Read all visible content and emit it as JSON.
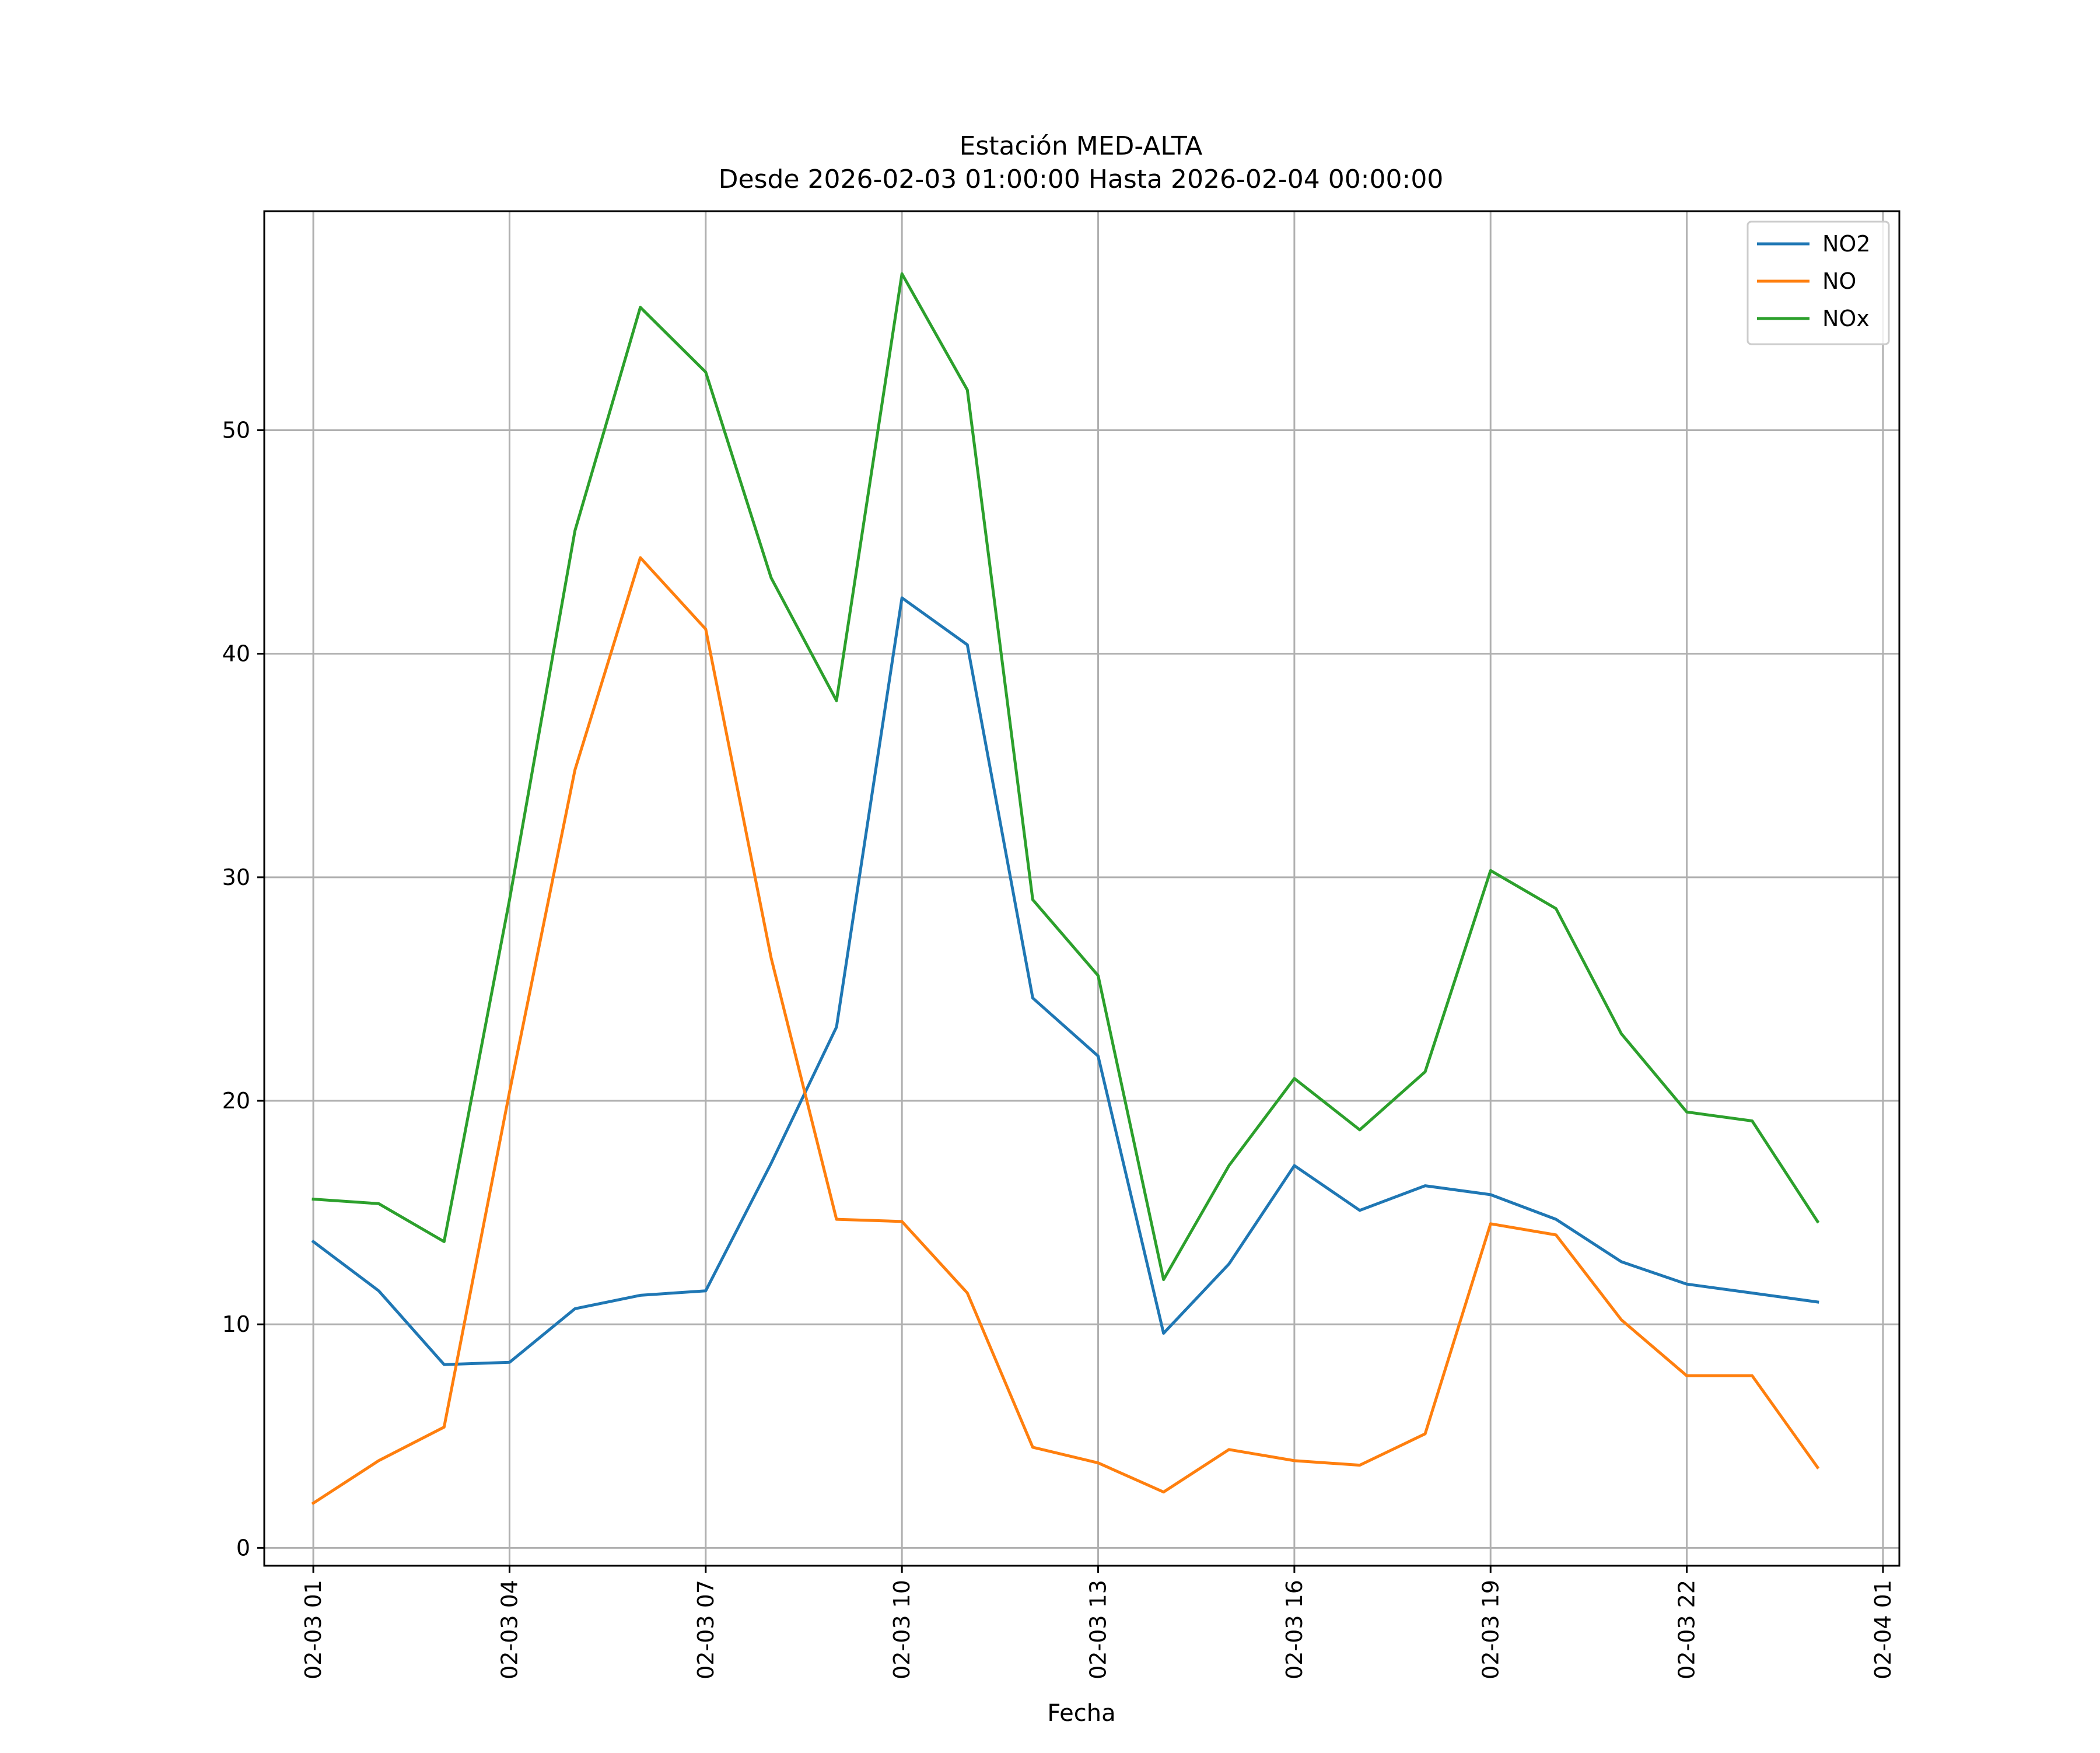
{
  "chart_data": {
    "type": "line",
    "title_line1": "Estación MED-ALTA",
    "title_line2": "Desde 2026-02-03 01:00:00 Hasta 2026-02-04 00:00:00",
    "xlabel": "Fecha",
    "ylabel": "",
    "x": [
      "2026-02-03 01:00",
      "2026-02-03 02:00",
      "2026-02-03 03:00",
      "2026-02-03 04:00",
      "2026-02-03 05:00",
      "2026-02-03 06:00",
      "2026-02-03 07:00",
      "2026-02-03 08:00",
      "2026-02-03 09:00",
      "2026-02-03 10:00",
      "2026-02-03 11:00",
      "2026-02-03 12:00",
      "2026-02-03 13:00",
      "2026-02-03 14:00",
      "2026-02-03 15:00",
      "2026-02-03 16:00",
      "2026-02-03 17:00",
      "2026-02-03 18:00",
      "2026-02-03 19:00",
      "2026-02-03 20:00",
      "2026-02-03 21:00",
      "2026-02-03 22:00",
      "2026-02-03 23:00",
      "2026-02-04 00:00"
    ],
    "xlim": [
      "2026-02-03 00:15",
      "2026-02-04 01:15"
    ],
    "xticks": [
      {
        "value": "2026-02-03 01:00",
        "label": "02-03 01"
      },
      {
        "value": "2026-02-03 04:00",
        "label": "02-03 04"
      },
      {
        "value": "2026-02-03 07:00",
        "label": "02-03 07"
      },
      {
        "value": "2026-02-03 10:00",
        "label": "02-03 10"
      },
      {
        "value": "2026-02-03 13:00",
        "label": "02-03 13"
      },
      {
        "value": "2026-02-03 16:00",
        "label": "02-03 16"
      },
      {
        "value": "2026-02-03 19:00",
        "label": "02-03 19"
      },
      {
        "value": "2026-02-03 22:00",
        "label": "02-03 22"
      },
      {
        "value": "2026-02-04 01:00",
        "label": "02-04 01"
      }
    ],
    "ylim": [
      -0.8,
      59.8
    ],
    "yticks": [
      0,
      10,
      20,
      30,
      40,
      50
    ],
    "grid": true,
    "legend_position": "top-right",
    "series": [
      {
        "name": "NO2",
        "color": "#1f77b4",
        "values": [
          13.7,
          11.5,
          8.2,
          8.3,
          10.7,
          11.3,
          11.5,
          17.2,
          23.3,
          42.5,
          40.4,
          24.6,
          22.0,
          9.6,
          12.7,
          17.1,
          15.1,
          16.2,
          15.8,
          14.7,
          12.8,
          11.8,
          11.4,
          11.0
        ]
      },
      {
        "name": "NO",
        "color": "#ff7f0e",
        "values": [
          2.0,
          3.9,
          5.4,
          20.4,
          34.8,
          44.3,
          41.1,
          26.4,
          14.7,
          14.6,
          11.4,
          4.5,
          3.8,
          2.5,
          4.4,
          3.9,
          3.7,
          5.1,
          14.5,
          14.0,
          10.2,
          7.7,
          7.7,
          3.6
        ]
      },
      {
        "name": "NOx",
        "color": "#2ca02c",
        "values": [
          15.6,
          15.4,
          13.7,
          29.0,
          45.5,
          55.5,
          52.6,
          43.4,
          37.9,
          57.0,
          51.8,
          29.0,
          25.6,
          12.0,
          17.1,
          21.0,
          18.7,
          21.3,
          30.3,
          28.6,
          23.0,
          19.5,
          19.1,
          14.6
        ]
      }
    ]
  }
}
